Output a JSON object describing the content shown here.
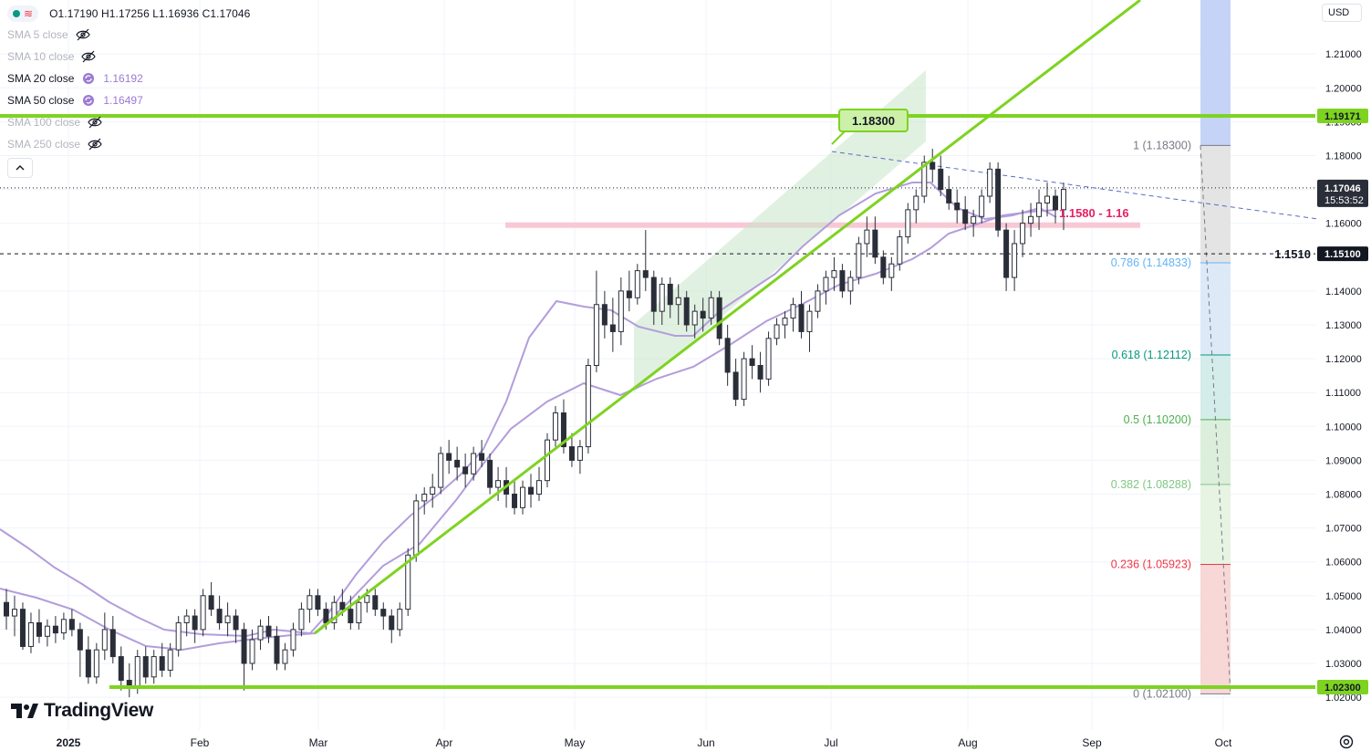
{
  "ohlc": {
    "text": "O1.17190  H1.17256  L1.16936  C1.17046"
  },
  "indicators": [
    {
      "name": "SMA 5 close",
      "value": "",
      "visible": false
    },
    {
      "name": "SMA 10 close",
      "value": "",
      "visible": false
    },
    {
      "name": "SMA 20 close",
      "value": "1.16192",
      "visible": true
    },
    {
      "name": "SMA 50 close",
      "value": "1.16497",
      "visible": true
    },
    {
      "name": "SMA 100 close",
      "value": "",
      "visible": false
    },
    {
      "name": "SMA 250 close",
      "value": "",
      "visible": false
    }
  ],
  "currency": "USD",
  "brand": "TradingView",
  "colors": {
    "up_candle": "#ffffff",
    "down_candle": "#2a2e39",
    "sma": "#b39ddb",
    "green_line": "#7ed321",
    "pink_zone": "#f8c8d4",
    "channel": "#c8e6c9",
    "fib_zero": "#f8d7d7",
    "fib_blue": "#c5d3f7"
  },
  "chart_data": {
    "type": "candlestick",
    "instrument_price_axis": {
      "ticks": [
        "1.21000",
        "1.20000",
        "1.19000",
        "1.18000",
        "1.17000",
        "1.16000",
        "1.14000",
        "1.13000",
        "1.12000",
        "1.11000",
        "1.10000",
        "1.09000",
        "1.08000",
        "1.07000",
        "1.06000",
        "1.05000",
        "1.04000",
        "1.03000",
        "1.02000"
      ],
      "current_price": "1.17046",
      "countdown": "15:53:52"
    },
    "time_axis": [
      "2025",
      "Feb",
      "Mar",
      "Apr",
      "May",
      "Jun",
      "Jul",
      "Aug",
      "Sep",
      "Oct"
    ],
    "horizontal_levels": [
      {
        "price": 1.19171,
        "label": "1.19171",
        "color": "green"
      },
      {
        "price": 1.023,
        "label": "1.02300",
        "color": "green"
      },
      {
        "price": 1.151,
        "label": "1.15100",
        "note": "1.1510",
        "style": "dashed"
      }
    ],
    "annotations": {
      "peak_label": "1.18300",
      "zone_label": "1.1580 - 1.16"
    },
    "fibonacci": [
      {
        "level": "1",
        "price": "(1.18300)"
      },
      {
        "level": "0.786",
        "price": "(1.14833)"
      },
      {
        "level": "0.618",
        "price": "(1.12112)"
      },
      {
        "level": "0.5",
        "price": "(1.10200)"
      },
      {
        "level": "0.382",
        "price": "(1.08288)"
      },
      {
        "level": "0.236",
        "price": "(1.05923)"
      },
      {
        "level": "0",
        "price": "(1.02100)"
      }
    ],
    "candles": [
      [
        1.048,
        1.052,
        1.04,
        1.044
      ],
      [
        1.044,
        1.05,
        1.038,
        1.046
      ],
      [
        1.046,
        1.048,
        1.034,
        1.035
      ],
      [
        1.035,
        1.045,
        1.033,
        1.042
      ],
      [
        1.042,
        1.046,
        1.036,
        1.038
      ],
      [
        1.038,
        1.043,
        1.035,
        1.041
      ],
      [
        1.041,
        1.044,
        1.036,
        1.039
      ],
      [
        1.039,
        1.045,
        1.037,
        1.043
      ],
      [
        1.043,
        1.046,
        1.038,
        1.04
      ],
      [
        1.04,
        1.042,
        1.026,
        1.034
      ],
      [
        1.034,
        1.038,
        1.024,
        1.026
      ],
      [
        1.026,
        1.036,
        1.024,
        1.034
      ],
      [
        1.034,
        1.045,
        1.031,
        1.04
      ],
      [
        1.04,
        1.044,
        1.03,
        1.032
      ],
      [
        1.032,
        1.035,
        1.022,
        1.025
      ],
      [
        1.025,
        1.03,
        1.02,
        1.023
      ],
      [
        1.023,
        1.034,
        1.021,
        1.032
      ],
      [
        1.032,
        1.035,
        1.024,
        1.026
      ],
      [
        1.026,
        1.034,
        1.024,
        1.032
      ],
      [
        1.032,
        1.036,
        1.026,
        1.028
      ],
      [
        1.028,
        1.036,
        1.026,
        1.034
      ],
      [
        1.034,
        1.044,
        1.032,
        1.042
      ],
      [
        1.042,
        1.046,
        1.038,
        1.044
      ],
      [
        1.044,
        1.046,
        1.036,
        1.04
      ],
      [
        1.04,
        1.052,
        1.038,
        1.05
      ],
      [
        1.05,
        1.054,
        1.044,
        1.046
      ],
      [
        1.046,
        1.05,
        1.04,
        1.042
      ],
      [
        1.042,
        1.048,
        1.038,
        1.044
      ],
      [
        1.044,
        1.046,
        1.036,
        1.04
      ],
      [
        1.04,
        1.042,
        1.022,
        1.03
      ],
      [
        1.03,
        1.04,
        1.028,
        1.037
      ],
      [
        1.037,
        1.043,
        1.034,
        1.041
      ],
      [
        1.041,
        1.044,
        1.036,
        1.038
      ],
      [
        1.038,
        1.041,
        1.028,
        1.03
      ],
      [
        1.03,
        1.036,
        1.028,
        1.034
      ],
      [
        1.034,
        1.042,
        1.032,
        1.04
      ],
      [
        1.04,
        1.048,
        1.038,
        1.046
      ],
      [
        1.046,
        1.052,
        1.042,
        1.05
      ],
      [
        1.05,
        1.052,
        1.044,
        1.046
      ],
      [
        1.046,
        1.048,
        1.04,
        1.042
      ],
      [
        1.042,
        1.05,
        1.04,
        1.048
      ],
      [
        1.048,
        1.052,
        1.044,
        1.046
      ],
      [
        1.046,
        1.05,
        1.04,
        1.042
      ],
      [
        1.042,
        1.05,
        1.04,
        1.048
      ],
      [
        1.048,
        1.052,
        1.045,
        1.05
      ],
      [
        1.05,
        1.052,
        1.044,
        1.046
      ],
      [
        1.046,
        1.048,
        1.04,
        1.044
      ],
      [
        1.044,
        1.046,
        1.036,
        1.04
      ],
      [
        1.04,
        1.048,
        1.038,
        1.046
      ],
      [
        1.046,
        1.064,
        1.044,
        1.062
      ],
      [
        1.062,
        1.08,
        1.06,
        1.078
      ],
      [
        1.078,
        1.082,
        1.074,
        1.08
      ],
      [
        1.08,
        1.086,
        1.076,
        1.082
      ],
      [
        1.082,
        1.094,
        1.08,
        1.092
      ],
      [
        1.092,
        1.096,
        1.086,
        1.09
      ],
      [
        1.09,
        1.094,
        1.084,
        1.088
      ],
      [
        1.088,
        1.092,
        1.082,
        1.086
      ],
      [
        1.086,
        1.094,
        1.084,
        1.092
      ],
      [
        1.092,
        1.096,
        1.088,
        1.09
      ],
      [
        1.09,
        1.092,
        1.08,
        1.082
      ],
      [
        1.082,
        1.088,
        1.078,
        1.084
      ],
      [
        1.084,
        1.088,
        1.076,
        1.08
      ],
      [
        1.08,
        1.084,
        1.074,
        1.076
      ],
      [
        1.076,
        1.084,
        1.074,
        1.082
      ],
      [
        1.082,
        1.086,
        1.076,
        1.08
      ],
      [
        1.08,
        1.088,
        1.078,
        1.084
      ],
      [
        1.084,
        1.098,
        1.082,
        1.096
      ],
      [
        1.096,
        1.106,
        1.094,
        1.104
      ],
      [
        1.104,
        1.108,
        1.092,
        1.094
      ],
      [
        1.094,
        1.098,
        1.088,
        1.09
      ],
      [
        1.09,
        1.096,
        1.086,
        1.094
      ],
      [
        1.094,
        1.12,
        1.092,
        1.118
      ],
      [
        1.118,
        1.146,
        1.116,
        1.136
      ],
      [
        1.136,
        1.14,
        1.126,
        1.13
      ],
      [
        1.13,
        1.138,
        1.122,
        1.128
      ],
      [
        1.128,
        1.144,
        1.124,
        1.14
      ],
      [
        1.14,
        1.146,
        1.134,
        1.138
      ],
      [
        1.138,
        1.148,
        1.136,
        1.146
      ],
      [
        1.146,
        1.158,
        1.14,
        1.144
      ],
      [
        1.144,
        1.146,
        1.13,
        1.134
      ],
      [
        1.134,
        1.144,
        1.13,
        1.142
      ],
      [
        1.142,
        1.144,
        1.132,
        1.136
      ],
      [
        1.136,
        1.142,
        1.13,
        1.138
      ],
      [
        1.138,
        1.14,
        1.128,
        1.13
      ],
      [
        1.13,
        1.136,
        1.126,
        1.134
      ],
      [
        1.134,
        1.138,
        1.128,
        1.132
      ],
      [
        1.132,
        1.14,
        1.13,
        1.138
      ],
      [
        1.138,
        1.14,
        1.124,
        1.126
      ],
      [
        1.126,
        1.13,
        1.112,
        1.116
      ],
      [
        1.116,
        1.12,
        1.106,
        1.108
      ],
      [
        1.108,
        1.122,
        1.106,
        1.12
      ],
      [
        1.12,
        1.124,
        1.114,
        1.118
      ],
      [
        1.118,
        1.122,
        1.11,
        1.114
      ],
      [
        1.114,
        1.128,
        1.112,
        1.126
      ],
      [
        1.126,
        1.132,
        1.124,
        1.13
      ],
      [
        1.13,
        1.134,
        1.126,
        1.132
      ],
      [
        1.132,
        1.138,
        1.128,
        1.136
      ],
      [
        1.136,
        1.14,
        1.126,
        1.128
      ],
      [
        1.128,
        1.136,
        1.122,
        1.134
      ],
      [
        1.134,
        1.142,
        1.132,
        1.14
      ],
      [
        1.14,
        1.146,
        1.136,
        1.144
      ],
      [
        1.144,
        1.15,
        1.14,
        1.146
      ],
      [
        1.146,
        1.148,
        1.138,
        1.14
      ],
      [
        1.14,
        1.146,
        1.136,
        1.144
      ],
      [
        1.144,
        1.156,
        1.142,
        1.154
      ],
      [
        1.154,
        1.162,
        1.15,
        1.158
      ],
      [
        1.158,
        1.162,
        1.148,
        1.15
      ],
      [
        1.15,
        1.152,
        1.142,
        1.144
      ],
      [
        1.144,
        1.15,
        1.14,
        1.148
      ],
      [
        1.148,
        1.158,
        1.146,
        1.156
      ],
      [
        1.156,
        1.166,
        1.154,
        1.164
      ],
      [
        1.164,
        1.17,
        1.16,
        1.168
      ],
      [
        1.168,
        1.18,
        1.166,
        1.178
      ],
      [
        1.178,
        1.182,
        1.172,
        1.176
      ],
      [
        1.176,
        1.18,
        1.168,
        1.17
      ],
      [
        1.17,
        1.174,
        1.164,
        1.166
      ],
      [
        1.166,
        1.17,
        1.16,
        1.164
      ],
      [
        1.164,
        1.168,
        1.158,
        1.16
      ],
      [
        1.16,
        1.164,
        1.156,
        1.162
      ],
      [
        1.162,
        1.17,
        1.16,
        1.168
      ],
      [
        1.168,
        1.178,
        1.166,
        1.176
      ],
      [
        1.176,
        1.178,
        1.156,
        1.158
      ],
      [
        1.158,
        1.16,
        1.14,
        1.144
      ],
      [
        1.144,
        1.158,
        1.14,
        1.154
      ],
      [
        1.154,
        1.164,
        1.15,
        1.16
      ],
      [
        1.16,
        1.166,
        1.156,
        1.162
      ],
      [
        1.162,
        1.17,
        1.158,
        1.166
      ],
      [
        1.166,
        1.172,
        1.162,
        1.168
      ],
      [
        1.168,
        1.17,
        1.16,
        1.164
      ],
      [
        1.164,
        1.172,
        1.158,
        1.17
      ]
    ]
  }
}
